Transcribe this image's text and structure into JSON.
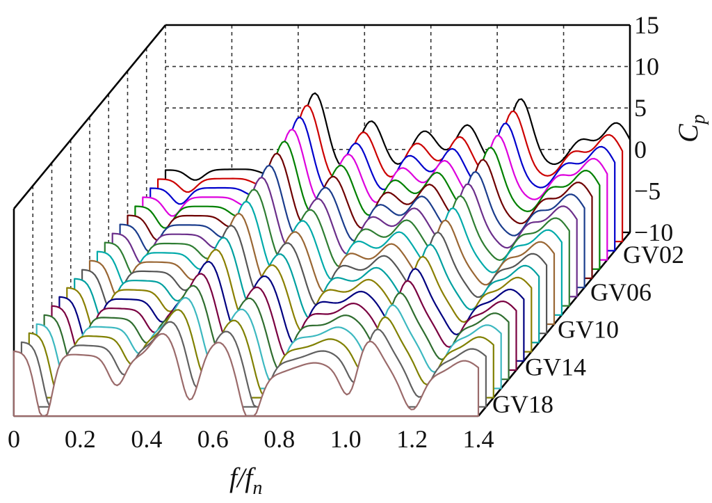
{
  "chart_data": {
    "type": "line",
    "subtype": "3d-waterfall",
    "xlabel": {
      "main": "f/f",
      "sub": "n"
    },
    "zlabel": {
      "main": "C",
      "sub": "p"
    },
    "xlim": [
      0,
      1.4
    ],
    "zlim": [
      -10,
      15
    ],
    "grid": true,
    "x_ticks": [
      "0",
      "0.2",
      "0.4",
      "0.6",
      "0.8",
      "1.0",
      "1.2",
      "1.4"
    ],
    "z_ticks": [
      "15",
      "10",
      "5",
      "0",
      "−5",
      "−10"
    ],
    "depth_ticks": [
      "GV02",
      "GV06",
      "GV10",
      "GV14",
      "GV18"
    ],
    "colors": [
      "#000000",
      "#cc0000",
      "#0000cc",
      "#dd00dd",
      "#008000",
      "#6e0000",
      "#1a3c8c",
      "#6b2e8a",
      "#2e7d32",
      "#00aaaa",
      "#996633",
      "#555555",
      "#00a0a0",
      "#8a7f00",
      "#000080",
      "#7a0040",
      "#2f6d2f",
      "#3cb8c0",
      "#808000",
      "#606060",
      "#9a6a6a"
    ],
    "peaks": [
      {
        "x": 0.45,
        "z0": 14.5,
        "z1": 5.0,
        "w": 0.035
      },
      {
        "x": 0.62,
        "z0": 9.0,
        "z1": 4.0,
        "w": 0.035
      },
      {
        "x": 0.78,
        "z0": 7.0,
        "z1": -1.5,
        "w": 0.04
      },
      {
        "x": 0.91,
        "z0": 8.0,
        "z1": 1.0,
        "w": 0.035
      },
      {
        "x": 1.07,
        "z0": 13.0,
        "z1": 6.0,
        "w": 0.035
      },
      {
        "x": 1.25,
        "z0": 5.0,
        "z1": 0.0,
        "w": 0.04
      },
      {
        "x": 1.36,
        "z0": 8.0,
        "z1": 3.0,
        "w": 0.04
      }
    ],
    "dips": [
      {
        "x": 0.09,
        "z0": -2.0,
        "z1": -13.0,
        "w": 0.025
      },
      {
        "x": 0.31,
        "z0": -1.0,
        "z1": -5.5,
        "w": 0.025
      },
      {
        "x": 0.53,
        "z0": -1.0,
        "z1": -8.0,
        "w": 0.025
      },
      {
        "x": 0.71,
        "z0": -1.0,
        "z1": -11.0,
        "w": 0.03
      },
      {
        "x": 1.01,
        "z0": -1.0,
        "z1": -6.0,
        "w": 0.025
      },
      {
        "x": 1.2,
        "z0": -1.0,
        "z1": -7.0,
        "w": 0.03
      }
    ],
    "baseline": [
      {
        "x": 0.0,
        "z0": -2.0,
        "z1": -1.5
      },
      {
        "x": 1.4,
        "z0": -1.0,
        "z1": -6.5
      }
    ]
  }
}
